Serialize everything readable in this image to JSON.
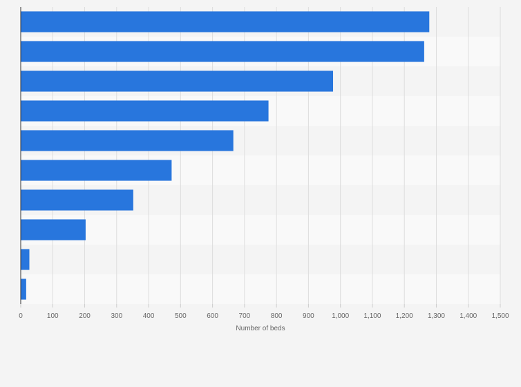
{
  "chart_data": {
    "type": "bar",
    "orientation": "horizontal",
    "title": "",
    "xlabel": "Number of beds",
    "ylabel": "",
    "xlim": [
      0,
      1500
    ],
    "x_ticks": [
      0,
      100,
      200,
      300,
      400,
      500,
      600,
      700,
      800,
      900,
      1000,
      1100,
      1200,
      1300,
      1400,
      1500
    ],
    "x_tick_labels": [
      "0",
      "100",
      "200",
      "300",
      "400",
      "500",
      "600",
      "700",
      "800",
      "900",
      "1,000",
      "1,100",
      "1,200",
      "1,300",
      "1,400",
      "1,500"
    ],
    "categories": [
      "",
      "",
      "",
      "",
      "",
      "",
      "",
      "",
      "",
      ""
    ],
    "values": [
      1278,
      1262,
      977,
      775,
      665,
      472,
      352,
      203,
      27,
      17
    ],
    "grid": true,
    "bar_color": "#2876dd",
    "band_colors": [
      "#f4f4f4",
      "#f9f9f9"
    ],
    "gridline_color": "#dddddd",
    "axis_color": "#333333",
    "text_color": "#666666"
  }
}
